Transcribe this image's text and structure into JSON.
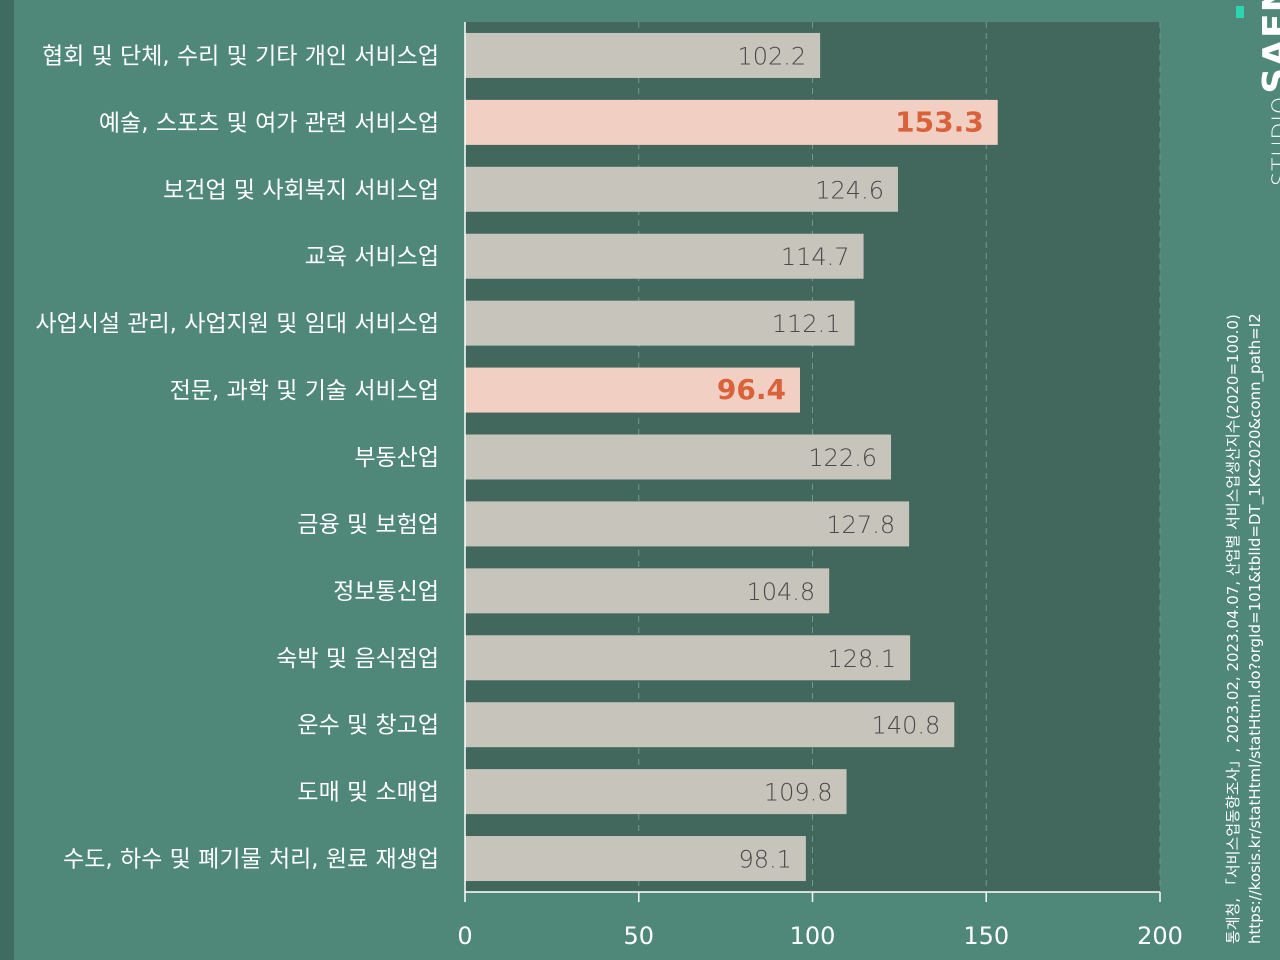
{
  "chart_data": {
    "type": "bar",
    "orientation": "horizontal",
    "categories": [
      "협회 및 단체, 수리 및 기타 개인 서비스업",
      "예술, 스포츠 및 여가 관련 서비스업",
      "보건업 및 사회복지 서비스업",
      "교육 서비스업",
      "사업시설 관리, 사업지원 및 임대 서비스업",
      "전문, 과학 및 기술 서비스업",
      "부동산업",
      "금융 및 보험업",
      "정보통신업",
      "숙박 및 음식점업",
      "운수 및 창고업",
      "도매 및 소매업",
      "수도, 하수 및 폐기물 처리, 원료 재생업"
    ],
    "values": [
      102.2,
      153.3,
      124.6,
      114.7,
      112.1,
      96.4,
      122.6,
      127.8,
      104.8,
      128.1,
      140.8,
      109.8,
      98.1
    ],
    "value_labels": [
      "102.2",
      "153.3",
      "124.6",
      "114.7",
      "112.1",
      "96.4",
      "122.6",
      "127.8",
      "104.8",
      "128.1",
      "140.8",
      "109.8",
      "98.1"
    ],
    "highlighted": [
      false,
      true,
      false,
      false,
      false,
      true,
      false,
      false,
      false,
      false,
      false,
      false,
      false
    ],
    "xlim": [
      0,
      200
    ],
    "xticks": [
      0,
      50,
      100,
      150,
      200
    ],
    "xtick_labels": [
      "0",
      "50",
      "100",
      "150",
      "200"
    ],
    "grid": "vertical dashed",
    "colors": {
      "background": "#4f8878",
      "plot_background": "#42685e",
      "bar": "#c6c4bb",
      "bar_highlight": "#f1cfc2",
      "highlight_text": "#d9623b",
      "label_text": "#4a4a4a"
    }
  },
  "brand": {
    "studio": "STUDIO",
    "saena": "SAENA"
  },
  "source": {
    "line1": "통계청, 「서비스업동향조사」, 2023.02, 2023.04.07, 산업별 서비스업생산지수(2020=100.0)",
    "line2": "https://kosis.kr/statHtml/statHtml.do?orgId=101&tblId=DT_1KC2020&conn_path=I2"
  }
}
